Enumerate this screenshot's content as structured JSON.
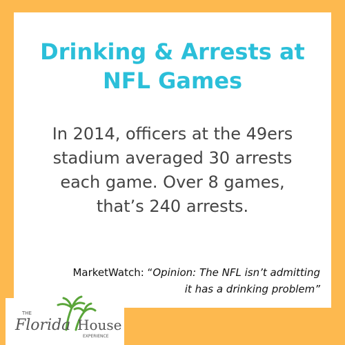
{
  "title": [
    "Drinking & Arrests at",
    "NFL Games"
  ],
  "body": [
    "In 2014, officers at the 49ers",
    "stadium averaged 30 arrests",
    "each game. Over 8 games,",
    "that’s 240 arrests."
  ],
  "source": {
    "outlet": "MarketWatch: “",
    "quote": [
      "Opinion: The NFL isn’t admitting",
      "it has a drinking problem”"
    ]
  },
  "logo": {
    "the": "THE",
    "florida": "Florida",
    "house": "House",
    "experience": "EXPERIENCE"
  }
}
